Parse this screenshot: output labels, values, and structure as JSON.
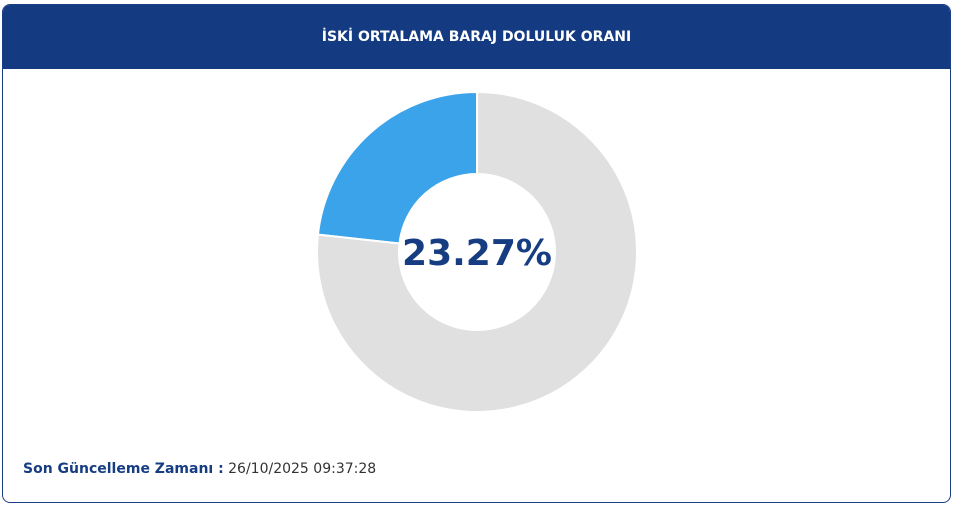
{
  "chart_data": {
    "type": "donut",
    "title": "İSKİ ORTALAMA BARAJ DOLULUK ORANI",
    "values": [
      23.27,
      76.73
    ],
    "value_labels": [
      "23.27%",
      null
    ],
    "colors": [
      "#3aa3ea",
      "#e0e0e0"
    ]
  },
  "footer": {
    "label": "Son Güncelleme Zamanı :",
    "value": "26/10/2025 09:37:28"
  }
}
